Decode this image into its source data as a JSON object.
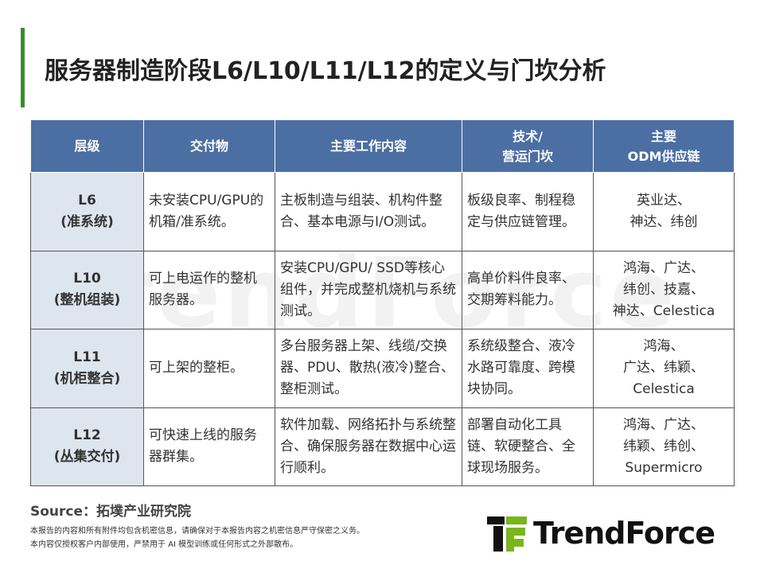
{
  "title": "服务器制造阶段L6/L10/L11/L12的定义与门坎分析",
  "table": {
    "headers": [
      "层级",
      "交付物",
      "主要工作内容",
      "技术/\n营运门坎",
      "主要\nODM供应链"
    ],
    "rows": [
      {
        "level": "L6\n(准系统)",
        "deliverable": "未安装CPU/GPU的机箱/准系统。",
        "work": "主板制造与组装、机构件整合、基本电源与I/O测试。",
        "threshold": "板级良率、制程稳定与供应链管理。",
        "odm": "英业达、\n神达、纬创"
      },
      {
        "level": "L10\n(整机组装)",
        "deliverable": "可上电运作的整机服务器。",
        "work": "安装CPU/GPU/ SSD等核心组件，并完成整机烧机与系统测试。",
        "threshold": "高单价料件良率、交期筹料能力。",
        "odm": "鸿海、广达、\n纬创、技嘉、\n神达、Celestica"
      },
      {
        "level": "L11\n(机柜整合)",
        "deliverable": "可上架的整柜。",
        "work": "多台服务器上架、线缆/交换器、PDU、散热(液冷)整合、整柜测试。",
        "threshold": "系统级整合、液冷水路可靠度、跨模块协同。",
        "odm": "鸿海、\n广达、纬颖、\nCelestica"
      },
      {
        "level": "L12\n(丛集交付)",
        "deliverable": "可快速上线的服务器群集。",
        "work": "软件加载、网络拓扑与系统整合、确保服务器在数据中心运行顺利。",
        "threshold": "部署自动化工具链、软硬整合、全球现场服务。",
        "odm": "鸿海、广达、\n纬颖、纬创、\nSupermicro"
      }
    ]
  },
  "source": "Source：拓墣产业研究院",
  "notes": [
    "本报告的内容和所有附件均包含机密信息，请确保对于本报告内容之机密信息严守保密之义务。",
    "本内容仅授权客户内部使用，严禁用于 AI 模型训练或任何形式之外部散布。"
  ],
  "logo": {
    "text": "TrendForce",
    "green": "#7ab51d"
  },
  "colors": {
    "header": "#4c6fa3",
    "level_bg": "#dde5ef",
    "accent_bar": "#3d8b2f"
  }
}
